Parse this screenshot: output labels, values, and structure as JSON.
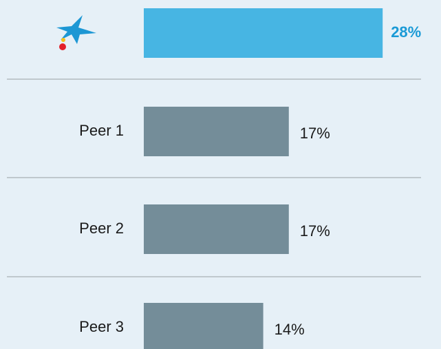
{
  "chart_data": {
    "type": "bar",
    "orientation": "horizontal",
    "categories": [
      null,
      "Peer 1",
      "Peer 2",
      "Peer 3"
    ],
    "values": [
      28,
      17,
      17,
      14
    ],
    "value_labels": [
      "28%",
      "17%",
      "17%",
      "14%"
    ],
    "colors": [
      "#47b5e3",
      "#748d99",
      "#748d99",
      "#748d99"
    ],
    "label_colors": [
      "#1a9ad6",
      "#1a1a1a",
      "#1a1a1a",
      "#1a1a1a"
    ]
  }
}
